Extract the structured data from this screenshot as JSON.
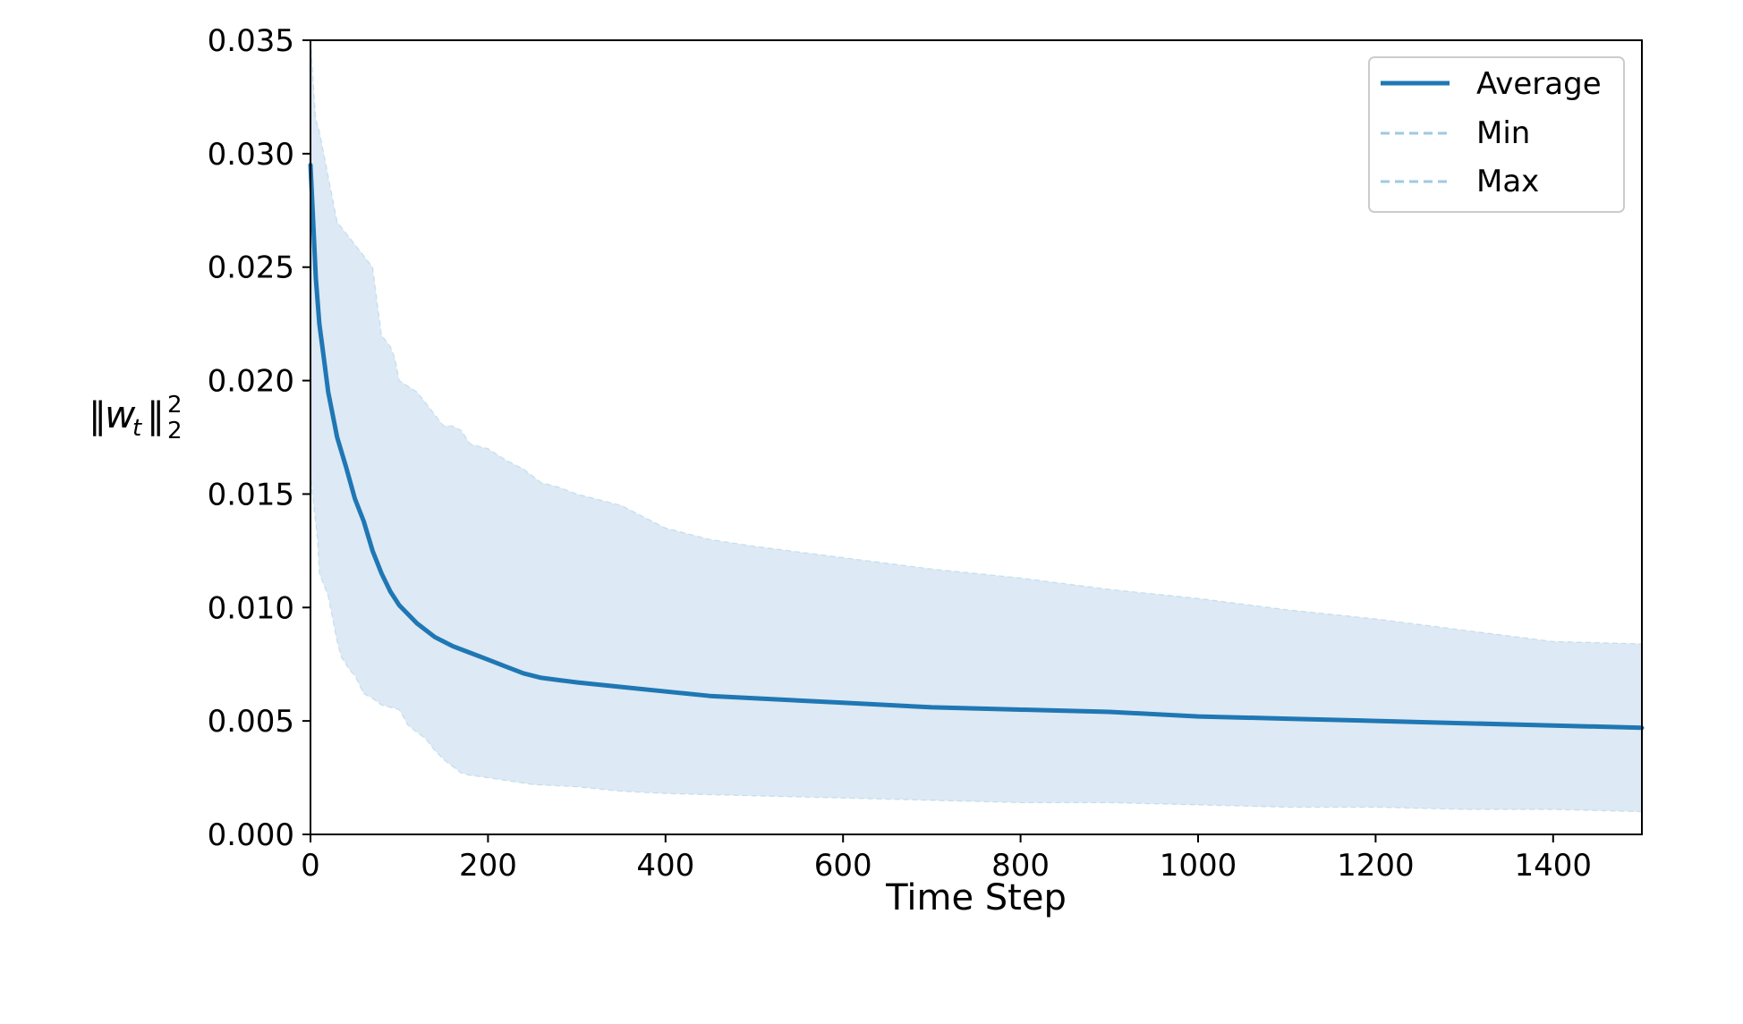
{
  "chart_data": {
    "type": "area",
    "title": "",
    "xlabel": "Time Step",
    "ylabel": "‖wₜ‖₂²",
    "ylabel_parts": {
      "norm": "‖",
      "var": "w",
      "sub": "t",
      "sup": "2",
      "sub2": "2"
    },
    "xlim": [
      0,
      1500
    ],
    "ylim": [
      0.0,
      0.035
    ],
    "x_ticks": [
      0,
      200,
      400,
      600,
      800,
      1000,
      1200,
      1400
    ],
    "x_tick_labels": [
      "0",
      "200",
      "400",
      "600",
      "800",
      "1000",
      "1200",
      "1400"
    ],
    "y_ticks": [
      0.0,
      0.005,
      0.01,
      0.015,
      0.02,
      0.025,
      0.03,
      0.035
    ],
    "y_tick_labels": [
      "0.000",
      "0.005",
      "0.010",
      "0.015",
      "0.020",
      "0.025",
      "0.030",
      "0.035"
    ],
    "grid": false,
    "legend_position": "top-right",
    "colors": {
      "average": "#1f77b4",
      "band": "#dde9f4",
      "minmax_line": "#9ecae1"
    },
    "series": [
      {
        "name": "Average",
        "style": "solid",
        "x": [
          0,
          3,
          6,
          10,
          15,
          20,
          30,
          40,
          50,
          60,
          70,
          80,
          90,
          100,
          120,
          140,
          160,
          180,
          200,
          220,
          240,
          260,
          280,
          300,
          350,
          400,
          450,
          500,
          600,
          700,
          800,
          900,
          1000,
          1100,
          1200,
          1300,
          1400,
          1500
        ],
        "values": [
          0.0295,
          0.027,
          0.0245,
          0.0225,
          0.021,
          0.0195,
          0.0175,
          0.0162,
          0.0148,
          0.0138,
          0.0125,
          0.0115,
          0.0107,
          0.0101,
          0.0093,
          0.0087,
          0.0083,
          0.008,
          0.0077,
          0.0074,
          0.0071,
          0.0069,
          0.0068,
          0.0067,
          0.0065,
          0.0063,
          0.0061,
          0.006,
          0.0058,
          0.0056,
          0.0055,
          0.0054,
          0.0052,
          0.0051,
          0.005,
          0.0049,
          0.0048,
          0.0047
        ]
      },
      {
        "name": "Min",
        "style": "dashed",
        "x": [
          0,
          2,
          5,
          8,
          10,
          15,
          20,
          25,
          30,
          35,
          40,
          45,
          50,
          60,
          70,
          80,
          100,
          110,
          120,
          130,
          140,
          150,
          160,
          170,
          180,
          200,
          250,
          300,
          350,
          400,
          500,
          600,
          700,
          800,
          900,
          1000,
          1100,
          1200,
          1300,
          1400,
          1500
        ],
        "values": [
          0.016,
          0.015,
          0.014,
          0.013,
          0.0115,
          0.011,
          0.0105,
          0.0095,
          0.0085,
          0.0078,
          0.0075,
          0.0072,
          0.007,
          0.0062,
          0.006,
          0.0057,
          0.0055,
          0.0048,
          0.0045,
          0.0042,
          0.0037,
          0.0033,
          0.003,
          0.0027,
          0.0026,
          0.0025,
          0.0022,
          0.0021,
          0.0019,
          0.0018,
          0.0017,
          0.0016,
          0.0015,
          0.0014,
          0.0014,
          0.0013,
          0.0012,
          0.0012,
          0.0011,
          0.0011,
          0.001
        ]
      },
      {
        "name": "Max",
        "style": "dashed",
        "x": [
          0,
          2,
          4,
          6,
          10,
          15,
          20,
          30,
          40,
          50,
          60,
          70,
          75,
          80,
          90,
          95,
          100,
          120,
          130,
          140,
          150,
          160,
          170,
          180,
          200,
          220,
          240,
          250,
          260,
          280,
          300,
          350,
          400,
          450,
          500,
          600,
          700,
          800,
          900,
          1000,
          1100,
          1200,
          1300,
          1400,
          1500
        ],
        "values": [
          0.035,
          0.034,
          0.0325,
          0.0315,
          0.031,
          0.03,
          0.029,
          0.027,
          0.0265,
          0.026,
          0.0255,
          0.025,
          0.0235,
          0.022,
          0.0215,
          0.021,
          0.02,
          0.0195,
          0.019,
          0.0185,
          0.018,
          0.018,
          0.0178,
          0.0172,
          0.017,
          0.0165,
          0.0161,
          0.0158,
          0.0155,
          0.0153,
          0.015,
          0.0145,
          0.0135,
          0.013,
          0.0127,
          0.0122,
          0.0117,
          0.0113,
          0.0108,
          0.0104,
          0.0099,
          0.0095,
          0.009,
          0.0085,
          0.0084
        ]
      }
    ]
  }
}
